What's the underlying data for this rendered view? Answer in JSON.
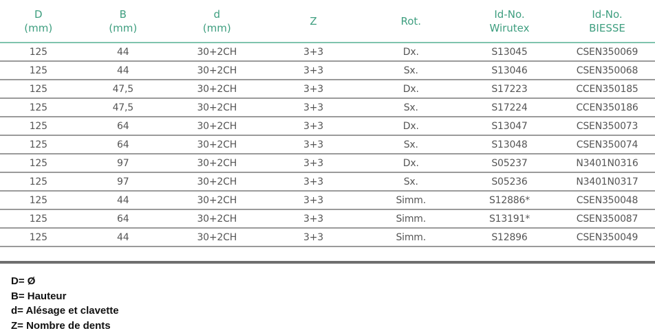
{
  "table": {
    "headers": [
      [
        "D",
        "(mm)"
      ],
      [
        "B",
        "(mm)"
      ],
      [
        "d",
        "(mm)"
      ],
      [
        "Z",
        ""
      ],
      [
        "Rot.",
        ""
      ],
      [
        "Id-No.",
        "Wirutex"
      ],
      [
        "Id-No.",
        "BIESSE"
      ]
    ],
    "rows": [
      [
        "125",
        "44",
        "30+2CH",
        "3+3",
        "Dx.",
        "S13045",
        "CSEN350069"
      ],
      [
        "125",
        "44",
        "30+2CH",
        "3+3",
        "Sx.",
        "S13046",
        "CSEN350068"
      ],
      [
        "125",
        "47,5",
        "30+2CH",
        "3+3",
        "Dx.",
        "S17223",
        "CCEN350185"
      ],
      [
        "125",
        "47,5",
        "30+2CH",
        "3+3",
        "Sx.",
        "S17224",
        "CCEN350186"
      ],
      [
        "125",
        "64",
        "30+2CH",
        "3+3",
        "Dx.",
        "S13047",
        "CSEN350073"
      ],
      [
        "125",
        "64",
        "30+2CH",
        "3+3",
        "Sx.",
        "S13048",
        "CSEN350074"
      ],
      [
        "125",
        "97",
        "30+2CH",
        "3+3",
        "Dx.",
        "S05237",
        "N3401N0316"
      ],
      [
        "125",
        "97",
        "30+2CH",
        "3+3",
        "Sx.",
        "S05236",
        "N3401N0317"
      ],
      [
        "125",
        "44",
        "30+2CH",
        "3+3",
        "Simm.",
        "S12886*",
        "CSEN350048"
      ],
      [
        "125",
        "64",
        "30+2CH",
        "3+3",
        "Simm.",
        "S13191*",
        "CSEN350087"
      ],
      [
        "125",
        "44",
        "30+2CH",
        "3+3",
        "Simm.",
        "S12896",
        "CSEN350049"
      ]
    ]
  },
  "legend": [
    "D= Ø",
    "B= Hauteur",
    "d= Alésage et clavette",
    "Z= Nombre de dents"
  ],
  "colors": {
    "header": "#3e9e7f",
    "text": "#555555"
  }
}
